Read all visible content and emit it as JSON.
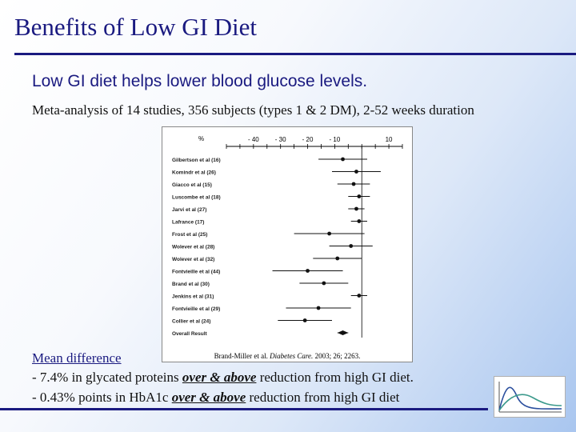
{
  "slide": {
    "title": "Benefits of Low GI Diet",
    "headline": "Low GI diet helps lower blood glucose levels.",
    "subline": "Meta-analysis of 14 studies, 356 subjects (types 1 & 2 DM), 2-52 weeks duration",
    "mean_heading": "Mean difference",
    "bullet1_pre": "- 7.4% in glycated proteins ",
    "bullet1_em": "over & above",
    "bullet1_post": " reduction from high GI diet.",
    "bullet2_pre": "- 0.43% points in HbA1c ",
    "bullet2_em": "over & above",
    "bullet2_post": " reduction from high GI diet",
    "caption_pre": "Brand-Miller et al. ",
    "caption_em": "Diabetes Care.",
    "caption_post": " 2003; 26; 2263."
  },
  "chart_data": {
    "type": "scatter",
    "axis_unit_label": "%",
    "xlim": [
      -50,
      15
    ],
    "xticks": [
      -40,
      -30,
      -20,
      -10,
      10
    ],
    "xtick_labels": [
      "- 40",
      "- 30",
      "- 20",
      "- 10",
      "10"
    ],
    "reference_line": 0,
    "studies": [
      {
        "label": "Gilbertson et al (16)",
        "x": -7,
        "lo": -16,
        "hi": 2
      },
      {
        "label": "Komindr et al (26)",
        "x": -2,
        "lo": -11,
        "hi": 7
      },
      {
        "label": "Giacco et al (15)",
        "x": -3,
        "lo": -9,
        "hi": 3
      },
      {
        "label": "Luscombe et al (18)",
        "x": -1,
        "lo": -5,
        "hi": 3
      },
      {
        "label": "Jarvi et al (27)",
        "x": -2,
        "lo": -5,
        "hi": 1
      },
      {
        "label": "Lafrance (17)",
        "x": -1,
        "lo": -4,
        "hi": 2
      },
      {
        "label": "Frost et al (25)",
        "x": -12,
        "lo": -25,
        "hi": 1
      },
      {
        "label": "Wolever et al (28)",
        "x": -4,
        "lo": -12,
        "hi": 4
      },
      {
        "label": "Wolever et al (32)",
        "x": -9,
        "lo": -18,
        "hi": 0
      },
      {
        "label": "Fontvieille et al (44)",
        "x": -20,
        "lo": -33,
        "hi": -7
      },
      {
        "label": "Brand et al (30)",
        "x": -14,
        "lo": -23,
        "hi": -5
      },
      {
        "label": "Jenkins et al (31)",
        "x": -1,
        "lo": -4,
        "hi": 2
      },
      {
        "label": "Fontvieille et al (29)",
        "x": -16,
        "lo": -28,
        "hi": -4
      },
      {
        "label": "Collier et al (24)",
        "x": -21,
        "lo": -31,
        "hi": -11
      }
    ],
    "overall": {
      "label": "Overall Result",
      "x": -7,
      "lo": -9,
      "hi": -5
    }
  }
}
